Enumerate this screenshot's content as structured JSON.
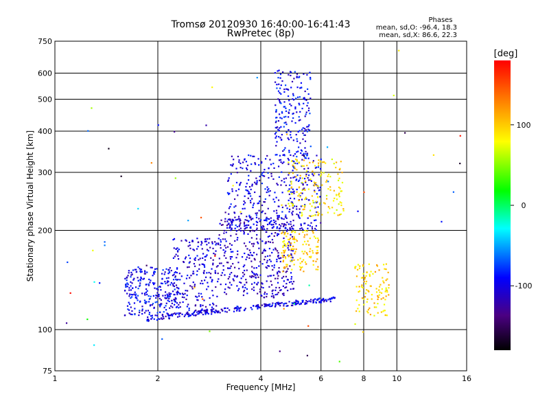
{
  "chart_data": {
    "type": "scatter",
    "title": "Tromsø 20120930 16:40:00-16:41:43",
    "subtitle": "RwPretec (8p)",
    "xlabel": "Frequency [MHz]",
    "ylabel": "Stationary phase Virtual Height [km]",
    "x_scale": "log",
    "y_scale": "log",
    "xlim": [
      1,
      16
    ],
    "ylim": [
      75,
      750
    ],
    "x_ticks": [
      1,
      2,
      4,
      6,
      8,
      10,
      16
    ],
    "y_ticks": [
      75,
      100,
      200,
      300,
      400,
      500,
      600,
      750
    ],
    "grid": true,
    "phase_info": {
      "heading": "Phases",
      "line_o": "mean, sd,O: -96.4, 18.3",
      "line_x": "mean, sd,X:  86.6, 22.3"
    },
    "colorbar": {
      "label": "[deg]",
      "range": [
        -180,
        180
      ],
      "ticks": [
        100,
        0,
        -100
      ],
      "colors": [
        "#000000",
        "#4b0082",
        "#0000ff",
        "#00ffff",
        "#00ff00",
        "#ffff00",
        "#ff8000",
        "#ff0000"
      ]
    },
    "traces": [
      {
        "desc": "O-mode E-layer trace",
        "x0": 1.85,
        "x1": 6.6,
        "y0": 108,
        "y1": 124,
        "phase": -100,
        "n": 260
      },
      {
        "desc": "O-mode lower F cluster",
        "x0": 1.6,
        "x1": 2.3,
        "y0": 110,
        "y1": 155,
        "phase": -95,
        "n": 260
      },
      {
        "desc": "O-mode cluster 2.2-3",
        "x0": 2.2,
        "x1": 3.0,
        "y0": 112,
        "y1": 190,
        "phase": -105,
        "n": 220
      },
      {
        "desc": "O-mode F1 cluster",
        "x0": 3.0,
        "x1": 5.0,
        "y0": 125,
        "y1": 220,
        "phase": -110,
        "n": 420
      },
      {
        "desc": "O-mode F2 cluster",
        "x0": 3.2,
        "x1": 6.0,
        "y0": 200,
        "y1": 340,
        "phase": -100,
        "n": 380
      },
      {
        "desc": "O-mode high F column",
        "x0": 4.4,
        "x1": 5.6,
        "y0": 330,
        "y1": 620,
        "phase": -95,
        "n": 200
      },
      {
        "desc": "X-mode lower",
        "x0": 4.6,
        "x1": 5.9,
        "y0": 150,
        "y1": 200,
        "phase": 100,
        "n": 130
      },
      {
        "desc": "X-mode upper",
        "x0": 4.8,
        "x1": 7.0,
        "y0": 220,
        "y1": 330,
        "phase": 90,
        "n": 160
      },
      {
        "desc": "X-mode high freq",
        "x0": 7.5,
        "x1": 9.5,
        "y0": 110,
        "y1": 160,
        "phase": 95,
        "n": 110
      },
      {
        "desc": "Scattered noise",
        "x0": 1.0,
        "x1": 16.0,
        "y0": 80,
        "y1": 720,
        "phase": 0,
        "n": 60
      }
    ]
  }
}
